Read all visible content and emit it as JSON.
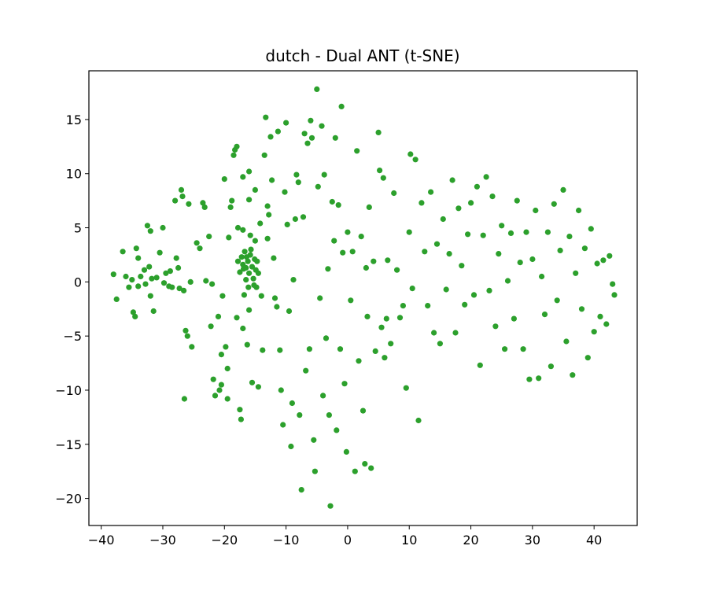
{
  "chart_data": {
    "type": "scatter",
    "title": "dutch - Dual ANT (t-SNE)",
    "xlabel": "",
    "ylabel": "",
    "xlim": [
      -42,
      47
    ],
    "ylim": [
      -22.5,
      19.5
    ],
    "xticks": [
      -40,
      -30,
      -20,
      -10,
      0,
      10,
      20,
      30,
      40
    ],
    "yticks": [
      -20,
      -15,
      -10,
      -5,
      0,
      5,
      10,
      15
    ],
    "xtick_labels": [
      "−40",
      "−30",
      "−20",
      "−10",
      "0",
      "10",
      "20",
      "30",
      "40"
    ],
    "ytick_labels": [
      "−20",
      "−15",
      "−10",
      "−5",
      "0",
      "5",
      "10",
      "15"
    ],
    "grid": false,
    "marker_color": "#2ca02c",
    "points": [
      [
        -38,
        0.7
      ],
      [
        -37.5,
        -1.6
      ],
      [
        -36.5,
        2.8
      ],
      [
        -36,
        0.5
      ],
      [
        -35.5,
        -0.5
      ],
      [
        -35,
        0.2
      ],
      [
        -34.8,
        -2.8
      ],
      [
        -34.5,
        -3.2
      ],
      [
        -34.3,
        3.1
      ],
      [
        -34,
        2.2
      ],
      [
        -34,
        -0.4
      ],
      [
        -33.6,
        0.5
      ],
      [
        -33,
        1.1
      ],
      [
        -32.8,
        -0.2
      ],
      [
        -32.5,
        5.2
      ],
      [
        -32.2,
        1.4
      ],
      [
        -32,
        -1.3
      ],
      [
        -32,
        4.7
      ],
      [
        -31.8,
        0.3
      ],
      [
        -31.5,
        -2.7
      ],
      [
        -31,
        0.4
      ],
      [
        -30.5,
        2.7
      ],
      [
        -30,
        5
      ],
      [
        -29.8,
        -0.1
      ],
      [
        -29.5,
        0.8
      ],
      [
        -29,
        -0.4
      ],
      [
        -28.8,
        1
      ],
      [
        -28.5,
        -0.5
      ],
      [
        -28,
        7.5
      ],
      [
        -27.8,
        2.2
      ],
      [
        -27.5,
        1.3
      ],
      [
        -27.3,
        -0.6
      ],
      [
        -27,
        8.5
      ],
      [
        -26.8,
        7.9
      ],
      [
        -26.6,
        -0.8
      ],
      [
        -26.3,
        -4.5
      ],
      [
        -26,
        -5
      ],
      [
        -25.8,
        7.2
      ],
      [
        -25.5,
        0
      ],
      [
        -25.3,
        -6
      ],
      [
        -26.5,
        -10.8
      ],
      [
        -24.5,
        3.6
      ],
      [
        -24,
        3.1
      ],
      [
        -23.5,
        7.3
      ],
      [
        -23.2,
        6.9
      ],
      [
        -23,
        0.1
      ],
      [
        -22.5,
        4.2
      ],
      [
        -22,
        -0.2
      ],
      [
        -22.2,
        -4.1
      ],
      [
        -21.8,
        -9
      ],
      [
        -21.5,
        -10.5
      ],
      [
        -21,
        -3.2
      ],
      [
        -20.8,
        -10
      ],
      [
        -20.5,
        -9.5
      ],
      [
        -20.3,
        -1.3
      ],
      [
        -20,
        9.5
      ],
      [
        -20.5,
        -6.7
      ],
      [
        -19.8,
        -6
      ],
      [
        -19.5,
        -10.8
      ],
      [
        -19.5,
        -8
      ],
      [
        -19.3,
        4.1
      ],
      [
        -19,
        6.9
      ],
      [
        -18.8,
        7.5
      ],
      [
        -18.5,
        11.7
      ],
      [
        -18.3,
        12.2
      ],
      [
        -18,
        12.5
      ],
      [
        -18,
        -3.3
      ],
      [
        -17.8,
        5
      ],
      [
        -17.5,
        -11.8
      ],
      [
        -17.3,
        -12.7
      ],
      [
        -17,
        9.7
      ],
      [
        -17,
        4.8
      ],
      [
        -17,
        -4.3
      ],
      [
        -16.8,
        -1.2
      ],
      [
        -16.5,
        1.3
      ],
      [
        -16.3,
        -5.8
      ],
      [
        -16,
        10.2
      ],
      [
        -16,
        7.6
      ],
      [
        -16,
        -2.6
      ],
      [
        -15.8,
        4.3
      ],
      [
        -15.5,
        -9.3
      ],
      [
        -15,
        8.5
      ],
      [
        -15,
        3.8
      ],
      [
        -14.8,
        -0.5
      ],
      [
        -14.5,
        -9.7
      ],
      [
        -14.2,
        5.4
      ],
      [
        -14,
        -1.3
      ],
      [
        -13.8,
        -6.3
      ],
      [
        -13.5,
        11.7
      ],
      [
        -13.3,
        15.2
      ],
      [
        -13,
        7
      ],
      [
        -13,
        4
      ],
      [
        -12.8,
        6.2
      ],
      [
        -12.5,
        13.4
      ],
      [
        -12.3,
        9.4
      ],
      [
        -12,
        2.2
      ],
      [
        -11.8,
        -1.5
      ],
      [
        -11.5,
        -2.3
      ],
      [
        -11.3,
        13.9
      ],
      [
        -11,
        -6.3
      ],
      [
        -10.8,
        -10
      ],
      [
        -10.5,
        -13.2
      ],
      [
        -10.2,
        8.3
      ],
      [
        -10,
        14.7
      ],
      [
        -9.8,
        5.3
      ],
      [
        -9.5,
        -2.7
      ],
      [
        -9.2,
        -15.2
      ],
      [
        -9,
        -11.2
      ],
      [
        -8.8,
        0.2
      ],
      [
        -8.5,
        5.8
      ],
      [
        -8.3,
        9.9
      ],
      [
        -8,
        9.2
      ],
      [
        -7.8,
        -12.3
      ],
      [
        -7.5,
        -19.2
      ],
      [
        -7.2,
        6
      ],
      [
        -7,
        13.7
      ],
      [
        -6.8,
        -8.2
      ],
      [
        -6.5,
        12.8
      ],
      [
        -6.2,
        -6.2
      ],
      [
        -6,
        14.9
      ],
      [
        -5.8,
        13.3
      ],
      [
        -5.5,
        -14.6
      ],
      [
        -5.3,
        -17.5
      ],
      [
        -5,
        17.8
      ],
      [
        -4.8,
        8.8
      ],
      [
        -4.5,
        -1.5
      ],
      [
        -4.2,
        14.4
      ],
      [
        -4,
        -10.5
      ],
      [
        -3.8,
        9.9
      ],
      [
        -3.5,
        -5.2
      ],
      [
        -3.2,
        1.2
      ],
      [
        -3,
        -12.3
      ],
      [
        -2.8,
        -20.7
      ],
      [
        -2.5,
        7.4
      ],
      [
        -2.2,
        3.8
      ],
      [
        -2,
        13.3
      ],
      [
        -1.8,
        -13.7
      ],
      [
        -1.5,
        7.1
      ],
      [
        -1.2,
        -6.2
      ],
      [
        -1,
        16.2
      ],
      [
        -0.8,
        2.7
      ],
      [
        -0.5,
        -9.4
      ],
      [
        -0.2,
        -15.7
      ],
      [
        0,
        4.6
      ],
      [
        0.5,
        -1.7
      ],
      [
        0.8,
        2.8
      ],
      [
        1.2,
        -17.5
      ],
      [
        1.5,
        12.1
      ],
      [
        1.8,
        -7.3
      ],
      [
        2.2,
        4.2
      ],
      [
        2.5,
        -11.9
      ],
      [
        2.8,
        -16.8
      ],
      [
        3,
        1.3
      ],
      [
        3.2,
        -3.2
      ],
      [
        3.5,
        6.9
      ],
      [
        3.8,
        -17.2
      ],
      [
        4.2,
        1.9
      ],
      [
        4.5,
        -6.4
      ],
      [
        5,
        13.8
      ],
      [
        5.2,
        10.3
      ],
      [
        5.5,
        -4.2
      ],
      [
        5.8,
        9.6
      ],
      [
        6,
        -7
      ],
      [
        6.3,
        -3.4
      ],
      [
        6.5,
        2
      ],
      [
        7,
        -5.7
      ],
      [
        7.5,
        8.2
      ],
      [
        8,
        1.1
      ],
      [
        8.5,
        -3.3
      ],
      [
        9,
        -2.2
      ],
      [
        9.5,
        -9.8
      ],
      [
        10,
        4.6
      ],
      [
        10.2,
        11.8
      ],
      [
        10.5,
        -0.6
      ],
      [
        11,
        11.3
      ],
      [
        11.5,
        -12.8
      ],
      [
        12,
        7.3
      ],
      [
        12.5,
        2.8
      ],
      [
        13,
        -2.2
      ],
      [
        13.5,
        8.3
      ],
      [
        14,
        -4.7
      ],
      [
        14.5,
        3.5
      ],
      [
        15,
        -5.7
      ],
      [
        15.5,
        5.8
      ],
      [
        16,
        -0.7
      ],
      [
        16.5,
        2.6
      ],
      [
        17,
        9.4
      ],
      [
        17.5,
        -4.7
      ],
      [
        18,
        6.8
      ],
      [
        18.5,
        1.5
      ],
      [
        19,
        -2.1
      ],
      [
        19.5,
        4.4
      ],
      [
        20,
        7.3
      ],
      [
        20.5,
        -1.2
      ],
      [
        21,
        8.8
      ],
      [
        21.5,
        -7.7
      ],
      [
        22,
        4.3
      ],
      [
        22.5,
        9.7
      ],
      [
        23,
        -0.8
      ],
      [
        23.5,
        7.9
      ],
      [
        24,
        -4.1
      ],
      [
        24.5,
        2.6
      ],
      [
        25,
        5.2
      ],
      [
        25.5,
        -6.2
      ],
      [
        26,
        0.1
      ],
      [
        26.5,
        4.5
      ],
      [
        27,
        -3.4
      ],
      [
        27.5,
        7.5
      ],
      [
        28,
        1.8
      ],
      [
        28.5,
        -6.2
      ],
      [
        29,
        4.6
      ],
      [
        29.5,
        -9
      ],
      [
        30,
        2.1
      ],
      [
        30.5,
        6.6
      ],
      [
        31,
        -8.9
      ],
      [
        31.5,
        0.5
      ],
      [
        32,
        -3
      ],
      [
        32.5,
        4.6
      ],
      [
        33,
        -7.8
      ],
      [
        33.5,
        7.2
      ],
      [
        34,
        -1.7
      ],
      [
        34.5,
        2.9
      ],
      [
        35,
        8.5
      ],
      [
        35.5,
        -5.5
      ],
      [
        36,
        4.2
      ],
      [
        36.5,
        -8.6
      ],
      [
        37,
        0.8
      ],
      [
        37.5,
        6.6
      ],
      [
        38,
        -2.5
      ],
      [
        38.5,
        3.1
      ],
      [
        39,
        -7
      ],
      [
        39.5,
        4.9
      ],
      [
        40,
        -4.6
      ],
      [
        40.5,
        1.7
      ],
      [
        41,
        -3.2
      ],
      [
        41.5,
        2
      ],
      [
        42,
        -3.9
      ],
      [
        42.5,
        2.4
      ],
      [
        43,
        -0.2
      ],
      [
        43.3,
        -1.2
      ],
      [
        -17.5,
        0.9
      ],
      [
        -17.2,
        2.3
      ],
      [
        -16.9,
        1.2
      ],
      [
        -16.7,
        2.8
      ],
      [
        -16.5,
        0.2
      ],
      [
        -16.2,
        1.9
      ],
      [
        -16,
        0.8
      ],
      [
        -15.8,
        2.5
      ],
      [
        -15.5,
        1.4
      ],
      [
        -15.3,
        0.3
      ],
      [
        -15.1,
        2.1
      ],
      [
        -14.9,
        1.1
      ],
      [
        -14.7,
        1.9
      ],
      [
        -15.2,
        -0.3
      ],
      [
        -16.4,
        2.3
      ],
      [
        -17,
        1.6
      ],
      [
        -15.7,
        3
      ],
      [
        -14.5,
        0.8
      ],
      [
        -16.1,
        -0.5
      ],
      [
        -17.8,
        1.9
      ]
    ]
  }
}
